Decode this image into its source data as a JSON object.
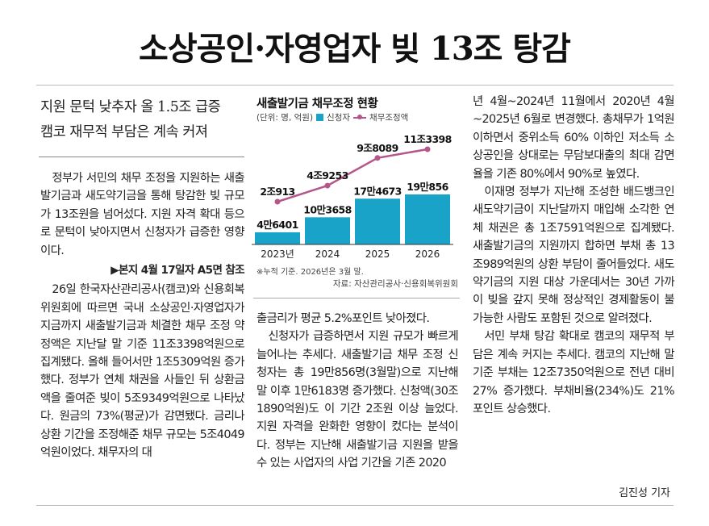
{
  "headline": "소상공인·자영업자 빚 13조 탕감",
  "subheads": [
    "지원 문턱 낮추자 올 1.5조 급증",
    "캠코 재무적 부담은 계속 커져"
  ],
  "col1": {
    "p1": "정부가 서민의 채무 조정을 지원하는 새출발기금과 새도약기금을 통해 탕감한 빚 규모가 13조원을 넘어섰다. 지원 자격 확대 등으로 문턱이 낮아지면서 신청자가 급증한 영향이다.",
    "ref": "▶본지 4월 17일자 A5면 참조",
    "p2": "26일 한국자산관리공사(캠코)와 신용회복위원회에 따르면 국내 소상공인·자영업자가 지금까지 새출발기금과 체결한 채무 조정 약정액은 지난달 말 기준 11조3398억원으로 집계됐다. 올해 들어서만 1조5309억원 증가했다. 정부가 연체 채권을 사들인 뒤 상환금액을 줄여준 빚이 5조9349억원으로 나타났다. 원금의 73%(평균)가 감면됐다. 금리나 상환 기간을 조정해준 채무 규모는 5조4049억원이었다. 채무자의 대"
  },
  "col2": {
    "p1": "출금리가 평균 5.2%포인트 낮아졌다.",
    "p2": "신청자가 급증하면서 지원 규모가 빠르게 늘어나는 추세다. 새출발기금 채무 조정 신청자는 총 19만856명(3월말)으로 지난해 말 이후 1만6183명 증가했다. 신청액(30조1890억원)도 이 기간 2조원 이상 늘었다. 지원 자격을 완화한 영향이 컸다는 분석이다. 정부는 지난해 새출발기금 지원을 받을 수 있는 사업자의 사업 기간을 기존 2020"
  },
  "col3": {
    "p1": "년 4월~2024년 11월에서 2020년 4월~2025년 6월로 변경했다. 총채무가 1억원 이하면서 중위소득 60% 이하인 저소득 소상공인을 상대로는 무담보대출의 최대 감면율을 기존 80%에서 90%로 높였다.",
    "p2": "이재명 정부가 지난해 조성한 배드뱅크인 새도약기금이 지난달까지 매입해 소각한 연체 채권은 총 1조7591억원으로 집계됐다. 새출발기금의 지원까지 합하면 부채 총 13조989억원의 상환 부담이 줄어들었다. 새도약기금의 지원 대상 가운데서는 30년 가까이 빚을 갚지 못해 정상적인 경제활동이 불가능한 사람도 포함된 것으로 알려졌다.",
    "p3": "서민 부채 탕감 확대로 캠코의 재무적 부담은 계속 커지는 추세다. 캠코의 지난해 말 기준 부채는 12조7350억원으로 전년 대비 27% 증가했다. 부채비율(234%)도 21%포인트 상승했다."
  },
  "byline": "김진성 기자",
  "chart_data": {
    "type": "bar",
    "title": "새출발기금 채무조정 현황",
    "unit": "(단위: 명, 억원)",
    "categories": [
      "2023년",
      "2024",
      "2025",
      "2026"
    ],
    "series": [
      {
        "name": "신청자",
        "values": [
          46401,
          103658,
          174673,
          190856
        ],
        "labels": [
          "4만6401",
          "10만3658",
          "17만4673",
          "19만856"
        ],
        "color": "#1aa3c8"
      },
      {
        "name": "채무조정액",
        "values": [
          20913,
          49253,
          98089,
          113398
        ],
        "labels": [
          "2조913",
          "4조9253",
          "9조8089",
          "11조3398"
        ],
        "color": "#b4568a"
      }
    ],
    "footnote": "※누적 기준. 2026년은 3월 말.",
    "source": "자료: 자산관리공사·신용회복위원회"
  }
}
